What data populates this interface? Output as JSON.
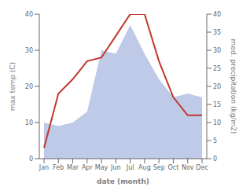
{
  "chart_data": {
    "type": "line",
    "categories": [
      "Jan",
      "Feb",
      "Mar",
      "Apr",
      "May",
      "Jun",
      "Jul",
      "Aug",
      "Sep",
      "Oct",
      "Nov",
      "Dec"
    ],
    "xlabel": "date (month)",
    "ylabel": "max temp (C)",
    "y2label": "med. precipitation (kg/m2)",
    "series": [
      {
        "type": "area",
        "axis": "y2",
        "color": "#bfc9e8",
        "values": [
          10,
          9,
          10,
          13,
          30,
          29,
          37,
          29,
          22,
          17,
          18,
          17
        ]
      },
      {
        "type": "line",
        "axis": "y",
        "color": "#c0392b",
        "values": [
          3,
          18,
          22,
          27,
          28,
          34,
          40,
          40,
          27,
          17,
          12,
          12
        ]
      }
    ],
    "ylim": [
      0,
      40
    ],
    "yticks": [
      0,
      10,
      20,
      30,
      40
    ],
    "y2lim": [
      0,
      40
    ],
    "y2ticks": [
      0,
      5,
      10,
      15,
      20,
      25,
      30,
      35,
      40
    ],
    "grid": false
  }
}
